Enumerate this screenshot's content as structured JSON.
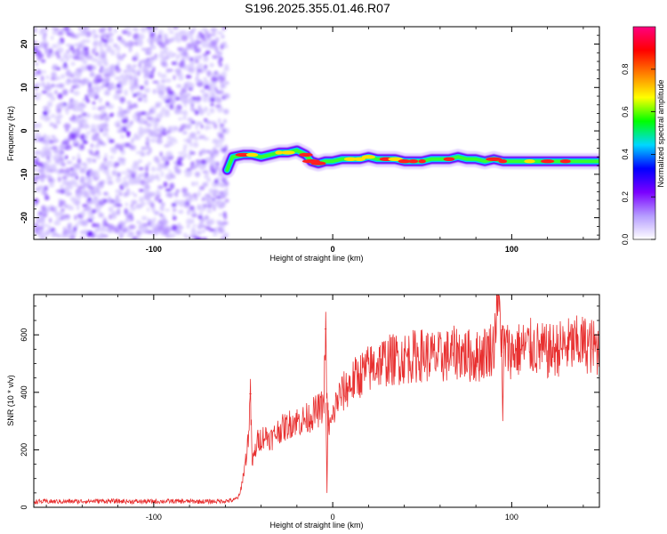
{
  "title": "S196.2025.355.01.46.R07",
  "chart_data": [
    {
      "type": "heatmap",
      "title": "",
      "xlabel": "Height of straight line (km)",
      "ylabel": "Frequency (Hz)",
      "xlim": [
        -167,
        149
      ],
      "ylim": [
        -25,
        24
      ],
      "xticks": [
        -100,
        0,
        100
      ],
      "xtick_labels": [
        "-100",
        "0",
        "100"
      ],
      "yticks": [
        -20,
        -10,
        0,
        10,
        20
      ],
      "ytick_labels": [
        "-20",
        "-10",
        "0",
        "10",
        "20"
      ],
      "noise_region_x": [
        -167,
        -59
      ],
      "trace": {
        "x": [
          -59,
          -56,
          -50,
          -45,
          -40,
          -35,
          -30,
          -25,
          -20,
          -15,
          -12,
          -8,
          -4,
          0,
          5,
          10,
          15,
          20,
          25,
          30,
          35,
          40,
          45,
          50,
          55,
          60,
          65,
          70,
          75,
          80,
          85,
          90,
          95,
          100,
          110,
          120,
          130,
          140,
          149
        ],
        "y": [
          -9,
          -6,
          -5.5,
          -5.5,
          -6,
          -5.5,
          -5,
          -5,
          -4.5,
          -5.5,
          -7,
          -7.5,
          -7,
          -7,
          -6.5,
          -6.5,
          -6.5,
          -6,
          -6.5,
          -6.5,
          -6.5,
          -7,
          -7,
          -7,
          -6.5,
          -6.5,
          -6.5,
          -6,
          -6.5,
          -6.5,
          -7,
          -6.5,
          -7,
          -7,
          -7,
          -7,
          -7,
          -7,
          -7
        ]
      },
      "colorbar": {
        "label": "Normalized spectral amplitude",
        "range": [
          0,
          1
        ],
        "ticks": [
          0.0,
          0.2,
          0.4,
          0.6,
          0.8
        ],
        "tick_labels": [
          "0.0",
          "0.2",
          "0.4",
          "0.6",
          "0.8"
        ],
        "colors": [
          "#ffffff",
          "#b59cff",
          "#7a00ff",
          "#0000ff",
          "#00d8ff",
          "#00ff00",
          "#ffff00",
          "#ff8000",
          "#ff0000",
          "#ff0080"
        ]
      }
    },
    {
      "type": "line",
      "title": "",
      "xlabel": "Height of straight line (km)",
      "ylabel": "SNR (10 * v/v)",
      "xlim": [
        -167,
        149
      ],
      "ylim": [
        0,
        740
      ],
      "xticks": [
        -100,
        0,
        100
      ],
      "xtick_labels": [
        "-100",
        "0",
        "100"
      ],
      "yticks": [
        0,
        200,
        400,
        600
      ],
      "ytick_labels": [
        "0",
        "200",
        "400",
        "600"
      ],
      "color": "#e83030",
      "series": [
        {
          "name": "SNR",
          "x": [
            -167,
            -150,
            -130,
            -110,
            -90,
            -70,
            -60,
            -55,
            -52,
            -50,
            -48,
            -47,
            -46,
            -45,
            -42,
            -38,
            -34,
            -30,
            -26,
            -22,
            -18,
            -14,
            -10,
            -7,
            -5,
            -4,
            -3,
            -1,
            1,
            3,
            6,
            10,
            15,
            20,
            25,
            30,
            40,
            50,
            60,
            70,
            80,
            90,
            92,
            95,
            100,
            110,
            120,
            130,
            140,
            149
          ],
          "y": [
            20,
            20,
            22,
            20,
            21,
            20,
            22,
            25,
            40,
            110,
            190,
            260,
            395,
            150,
            230,
            250,
            240,
            270,
            280,
            300,
            300,
            310,
            330,
            340,
            360,
            620,
            300,
            280,
            340,
            380,
            400,
            430,
            460,
            480,
            500,
            510,
            520,
            530,
            520,
            540,
            520,
            560,
            740,
            560,
            540,
            560,
            540,
            560,
            570,
            550
          ]
        }
      ]
    }
  ]
}
